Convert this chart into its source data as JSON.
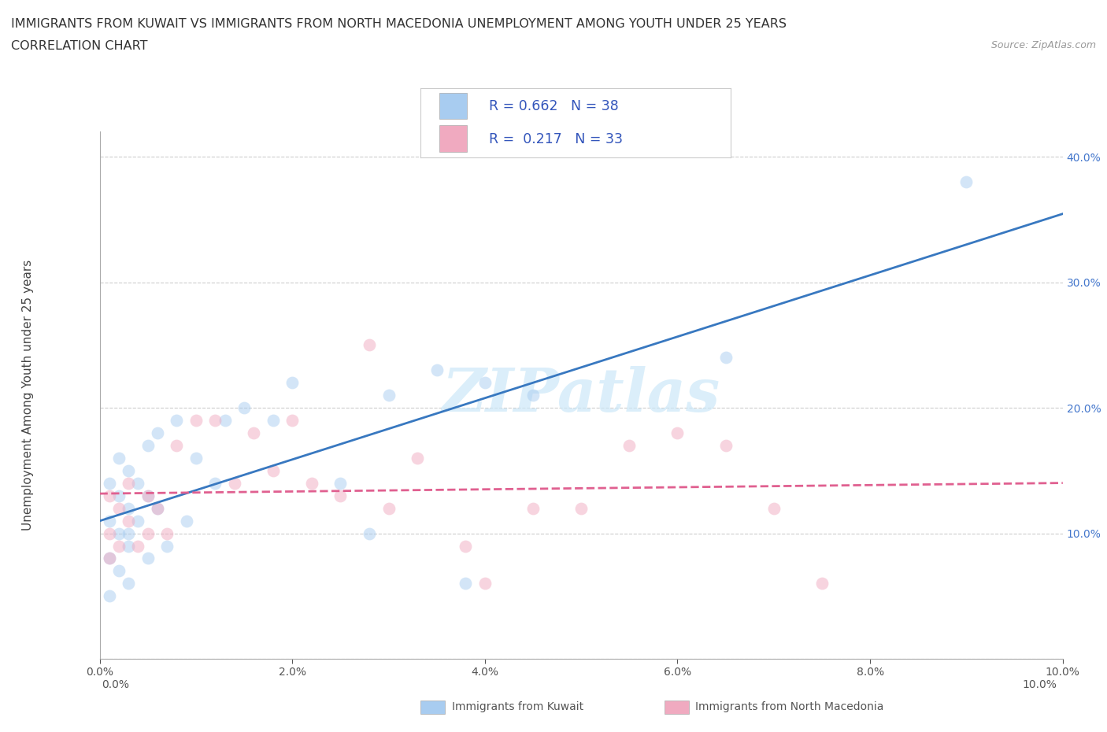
{
  "title_line1": "IMMIGRANTS FROM KUWAIT VS IMMIGRANTS FROM NORTH MACEDONIA UNEMPLOYMENT AMONG YOUTH UNDER 25 YEARS",
  "title_line2": "CORRELATION CHART",
  "source": "Source: ZipAtlas.com",
  "ylabel": "Unemployment Among Youth under 25 years",
  "watermark": "ZIPatlas",
  "legend_label1": "Immigrants from Kuwait",
  "legend_label2": "Immigrants from North Macedonia",
  "R1": 0.662,
  "N1": 38,
  "R2": 0.217,
  "N2": 33,
  "color1": "#a8ccf0",
  "color2": "#f0aac0",
  "line_color1": "#3878c0",
  "line_color2": "#e06090",
  "xlim": [
    0.0,
    0.1
  ],
  "ylim": [
    0.0,
    0.42
  ],
  "kuwait_x": [
    0.001,
    0.001,
    0.001,
    0.001,
    0.002,
    0.002,
    0.002,
    0.002,
    0.003,
    0.003,
    0.003,
    0.003,
    0.003,
    0.004,
    0.004,
    0.005,
    0.005,
    0.005,
    0.006,
    0.006,
    0.007,
    0.008,
    0.009,
    0.01,
    0.012,
    0.013,
    0.015,
    0.018,
    0.02,
    0.025,
    0.028,
    0.03,
    0.035,
    0.038,
    0.04,
    0.045,
    0.065,
    0.09
  ],
  "kuwait_y": [
    0.05,
    0.08,
    0.11,
    0.14,
    0.07,
    0.1,
    0.13,
    0.16,
    0.06,
    0.09,
    0.12,
    0.15,
    0.1,
    0.11,
    0.14,
    0.08,
    0.13,
    0.17,
    0.12,
    0.18,
    0.09,
    0.19,
    0.11,
    0.16,
    0.14,
    0.19,
    0.2,
    0.19,
    0.22,
    0.14,
    0.1,
    0.21,
    0.23,
    0.06,
    0.22,
    0.21,
    0.24,
    0.38
  ],
  "macedonia_x": [
    0.001,
    0.001,
    0.001,
    0.002,
    0.002,
    0.003,
    0.003,
    0.004,
    0.005,
    0.005,
    0.006,
    0.007,
    0.008,
    0.01,
    0.012,
    0.014,
    0.016,
    0.018,
    0.02,
    0.022,
    0.025,
    0.028,
    0.03,
    0.033,
    0.038,
    0.04,
    0.045,
    0.05,
    0.055,
    0.06,
    0.065,
    0.07,
    0.075
  ],
  "macedonia_y": [
    0.08,
    0.1,
    0.13,
    0.09,
    0.12,
    0.11,
    0.14,
    0.09,
    0.1,
    0.13,
    0.12,
    0.1,
    0.17,
    0.19,
    0.19,
    0.14,
    0.18,
    0.15,
    0.19,
    0.14,
    0.13,
    0.25,
    0.12,
    0.16,
    0.09,
    0.06,
    0.12,
    0.12,
    0.17,
    0.18,
    0.17,
    0.12,
    0.06
  ],
  "ytick_values": [
    0.0,
    0.1,
    0.2,
    0.3,
    0.4
  ],
  "xtick_values": [
    0.0,
    0.02,
    0.04,
    0.06,
    0.08,
    0.1
  ],
  "title_fontsize": 11.5,
  "subtitle_fontsize": 11.5,
  "axis_label_fontsize": 11,
  "tick_fontsize": 10,
  "legend_fontsize": 12,
  "scatter_size": 130,
  "scatter_alpha": 0.5,
  "background_color": "#ffffff"
}
